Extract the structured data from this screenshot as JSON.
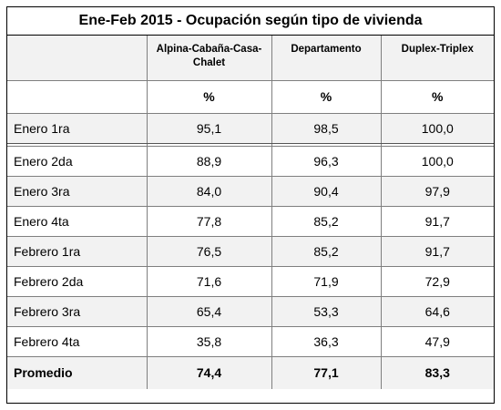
{
  "table": {
    "title": "Ene-Feb 2015 - Ocupación según tipo de vivienda",
    "columns": [
      "",
      "Alpina-Cabaña-Casa-Chalet",
      "Departamento",
      "Duplex-Triplex"
    ],
    "columns_display": [
      "",
      "Alpina-Cabaña-Casa-\nChalet",
      "Departamento",
      "Duplex-Triplex"
    ],
    "unit": "%",
    "rows": [
      {
        "label": "Enero 1ra",
        "values": [
          "95,1",
          "98,5",
          "100,0"
        ]
      },
      {
        "label": "Enero 2da",
        "values": [
          "88,9",
          "96,3",
          "100,0"
        ]
      },
      {
        "label": "Enero 3ra",
        "values": [
          "84,0",
          "90,4",
          "97,9"
        ]
      },
      {
        "label": "Enero 4ta",
        "values": [
          "77,8",
          "85,2",
          "91,7"
        ]
      },
      {
        "label": "Febrero 1ra",
        "values": [
          "76,5",
          "85,2",
          "91,7"
        ]
      },
      {
        "label": "Febrero 2da",
        "values": [
          "71,6",
          "71,9",
          "72,9"
        ]
      },
      {
        "label": "Febrero 3ra",
        "values": [
          "65,4",
          "53,3",
          "64,6"
        ]
      },
      {
        "label": "Febrero 4ta",
        "values": [
          "35,8",
          "36,3",
          "47,9"
        ]
      }
    ],
    "average": {
      "label": "Promedio",
      "values": [
        "74,4",
        "77,1",
        "83,3"
      ]
    }
  }
}
